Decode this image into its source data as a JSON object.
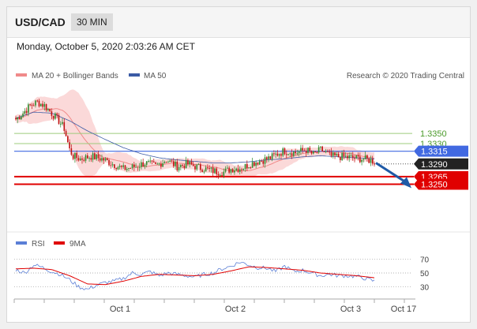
{
  "header": {
    "pair": "USD/CAD",
    "timeframe": "30 MIN"
  },
  "datetime": "Monday, October 5, 2020 2:03:26 AM CET",
  "legend": {
    "items": [
      {
        "label": "MA 20 + Bollinger Bands",
        "color": "#f08a8a"
      },
      {
        "label": "MA 50",
        "color": "#3b5ba5"
      }
    ],
    "credit": "Research © 2020 Trading Central"
  },
  "rsi_legend": {
    "items": [
      {
        "label": "RSI",
        "color": "#5b7fd6"
      },
      {
        "label": "9MA",
        "color": "#e00000"
      }
    ]
  },
  "colors": {
    "bull": "#2e8b2e",
    "bear": "#c01010",
    "green_level": "#9ccc7c",
    "blue_level": "#4169e1",
    "red_level": "#e00000",
    "band": "#fbd9d9",
    "arrow": "#1f5aa6"
  },
  "chart_data": [
    {
      "type": "candlestick",
      "ylim": [
        1.317,
        1.3445
      ],
      "x_ticks": [
        "Oct 1",
        "Oct 2",
        "Oct 3",
        "Oct 17"
      ],
      "levels": [
        {
          "value": 1.335,
          "label": "1.3350",
          "kind": "resistance"
        },
        {
          "value": 1.333,
          "label": "1.3330",
          "kind": "resistance"
        },
        {
          "value": 1.3315,
          "label": "1.3315",
          "kind": "pivot"
        },
        {
          "value": 1.329,
          "label": "1.3290",
          "kind": "last"
        },
        {
          "value": 1.3265,
          "label": "1.3265",
          "kind": "support"
        },
        {
          "value": 1.325,
          "label": "1.3250",
          "kind": "support"
        }
      ],
      "close_anchors": [
        [
          0,
          1.3378
        ],
        [
          4,
          1.339
        ],
        [
          8,
          1.3405
        ],
        [
          12,
          1.3412
        ],
        [
          16,
          1.3405
        ],
        [
          20,
          1.339
        ],
        [
          24,
          1.3375
        ],
        [
          27,
          1.336
        ],
        [
          30,
          1.3318
        ],
        [
          32,
          1.3305
        ],
        [
          36,
          1.33
        ],
        [
          42,
          1.3305
        ],
        [
          48,
          1.33
        ],
        [
          54,
          1.329
        ],
        [
          60,
          1.328
        ],
        [
          66,
          1.3284
        ],
        [
          72,
          1.3292
        ],
        [
          78,
          1.3286
        ],
        [
          84,
          1.3298
        ],
        [
          90,
          1.3285
        ],
        [
          96,
          1.329
        ],
        [
          102,
          1.3283
        ],
        [
          108,
          1.3278
        ],
        [
          112,
          1.3275
        ],
        [
          116,
          1.3274
        ],
        [
          120,
          1.328
        ],
        [
          126,
          1.3282
        ],
        [
          132,
          1.3292
        ],
        [
          138,
          1.3298
        ],
        [
          142,
          1.3302
        ],
        [
          146,
          1.331
        ],
        [
          150,
          1.3316
        ],
        [
          156,
          1.3312
        ],
        [
          162,
          1.3318
        ],
        [
          166,
          1.3308
        ],
        [
          170,
          1.3318
        ],
        [
          176,
          1.3305
        ],
        [
          182,
          1.3304
        ],
        [
          188,
          1.3302
        ],
        [
          194,
          1.33
        ],
        [
          200,
          1.3295
        ]
      ],
      "ma50_anchors": [
        [
          0,
          1.338
        ],
        [
          10,
          1.3392
        ],
        [
          20,
          1.339
        ],
        [
          30,
          1.3375
        ],
        [
          40,
          1.3355
        ],
        [
          50,
          1.3338
        ],
        [
          60,
          1.3322
        ],
        [
          70,
          1.331
        ],
        [
          80,
          1.3302
        ],
        [
          90,
          1.3298
        ],
        [
          100,
          1.3295
        ],
        [
          110,
          1.3292
        ],
        [
          120,
          1.3292
        ],
        [
          130,
          1.3294
        ],
        [
          140,
          1.3298
        ],
        [
          150,
          1.33
        ],
        [
          160,
          1.3304
        ],
        [
          170,
          1.3306
        ],
        [
          180,
          1.3304
        ],
        [
          190,
          1.3302
        ],
        [
          200,
          1.33
        ]
      ],
      "forecast": {
        "from": 1.3292,
        "to": 1.3258
      }
    },
    {
      "type": "line",
      "ylim": [
        20,
        80
      ],
      "y_ticks": [
        70,
        50,
        30
      ],
      "rsi_anchors": [
        [
          0,
          55
        ],
        [
          5,
          50
        ],
        [
          10,
          62
        ],
        [
          15,
          58
        ],
        [
          20,
          52
        ],
        [
          25,
          48
        ],
        [
          30,
          40
        ],
        [
          35,
          30
        ],
        [
          40,
          26
        ],
        [
          45,
          32
        ],
        [
          50,
          36
        ],
        [
          55,
          38
        ],
        [
          60,
          42
        ],
        [
          65,
          50
        ],
        [
          70,
          48
        ],
        [
          75,
          52
        ],
        [
          80,
          46
        ],
        [
          85,
          50
        ],
        [
          90,
          48
        ],
        [
          95,
          46
        ],
        [
          100,
          44
        ],
        [
          105,
          48
        ],
        [
          110,
          50
        ],
        [
          115,
          56
        ],
        [
          120,
          60
        ],
        [
          125,
          66
        ],
        [
          130,
          62
        ],
        [
          135,
          58
        ],
        [
          140,
          57
        ],
        [
          145,
          52
        ],
        [
          150,
          60
        ],
        [
          155,
          52
        ],
        [
          160,
          54
        ],
        [
          165,
          50
        ],
        [
          170,
          46
        ],
        [
          175,
          48
        ],
        [
          180,
          46
        ],
        [
          185,
          46
        ],
        [
          190,
          45
        ],
        [
          195,
          42
        ],
        [
          200,
          38
        ]
      ],
      "ma9_anchors": [
        [
          0,
          56
        ],
        [
          10,
          57
        ],
        [
          20,
          55
        ],
        [
          30,
          46
        ],
        [
          40,
          34
        ],
        [
          50,
          33
        ],
        [
          60,
          38
        ],
        [
          70,
          45
        ],
        [
          80,
          48
        ],
        [
          90,
          47
        ],
        [
          100,
          46
        ],
        [
          110,
          48
        ],
        [
          120,
          53
        ],
        [
          130,
          59
        ],
        [
          140,
          58
        ],
        [
          150,
          56
        ],
        [
          160,
          54
        ],
        [
          170,
          50
        ],
        [
          180,
          48
        ],
        [
          190,
          46
        ],
        [
          200,
          43
        ]
      ]
    }
  ]
}
